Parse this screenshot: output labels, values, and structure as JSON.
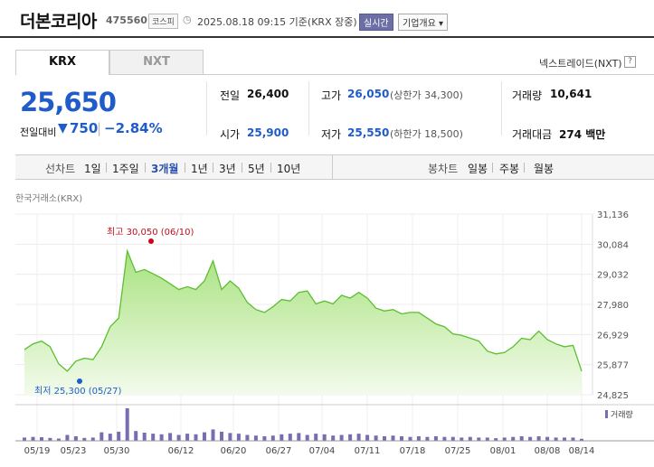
{
  "header": {
    "name": "더본코리아",
    "code": "475560",
    "market": "코스피",
    "timestamp": "2025.08.18 09:15 기준(KRX 장중)",
    "live_button": "실시간",
    "company_button": "기업개요 ▾"
  },
  "tabs": [
    {
      "label": "KRX"
    },
    {
      "label": "NXT"
    }
  ],
  "nxt_link": "넥스트레이드(NXT)",
  "help_icon": "?",
  "price": {
    "current": "25,650",
    "change_label": "전일대비",
    "change_arrow": "▼",
    "change": "750",
    "change_pct": "−2.84%"
  },
  "quote": {
    "prev_label": "전일",
    "prev": "26,400",
    "open_label": "시가",
    "open": "25,900",
    "high_label": "고가",
    "high": "26,050",
    "upper_limit": "(상한가 34,300)",
    "low_label": "저가",
    "low": "25,550",
    "lower_limit": "(하한가 18,500)",
    "volume_label": "거래량",
    "volume": "10,641",
    "amount_label": "거래대금",
    "amount": "274 백만"
  },
  "periods": {
    "line_label": "선차트",
    "line_items": [
      "1일",
      "1주일",
      "3개월",
      "1년",
      "3년",
      "5년",
      "10년"
    ],
    "active": "3개월",
    "candle_label": "봉차트",
    "candle_items": [
      "일봉",
      "주봉",
      "월봉"
    ]
  },
  "source": "한국거래소(KRX)",
  "colors": {
    "price_down": "#1f5cc9",
    "price_up": "#d0021b",
    "line": "#5bbf2e",
    "volume": "#7a6cb0"
  },
  "chart_data": {
    "type": "area",
    "y_ticks": [
      "31,136",
      "30,084",
      "29,032",
      "27,980",
      "26,929",
      "25,877",
      "24,825"
    ],
    "ylim": [
      24825,
      31136
    ],
    "x_ticks": [
      "05/19",
      "05/23",
      "05/30",
      "06/12",
      "06/20",
      "06/27",
      "07/04",
      "07/11",
      "07/18",
      "07/25",
      "08/01",
      "08/08",
      "08/14"
    ],
    "max_label": "최고 30,050 (06/10)",
    "min_label": "최저 25,300 (05/27)",
    "volume_legend": "거래량",
    "values": [
      26400,
      26600,
      26700,
      26500,
      25900,
      25650,
      26000,
      26100,
      26050,
      26500,
      27200,
      27500,
      29850,
      29100,
      29200,
      29050,
      28900,
      28700,
      28500,
      28600,
      28500,
      28800,
      29500,
      28500,
      28800,
      28550,
      28050,
      27800,
      27700,
      27900,
      28150,
      28100,
      28400,
      28450,
      28000,
      28100,
      28000,
      28300,
      28200,
      28400,
      28200,
      27850,
      27750,
      27800,
      27650,
      27700,
      27700,
      27500,
      27300,
      27200,
      26950,
      26900,
      26800,
      26700,
      26350,
      26250,
      26300,
      26500,
      26800,
      26750,
      27050,
      26750,
      26600,
      26500,
      26550,
      25650
    ],
    "volume": [
      10,
      12,
      11,
      9,
      7,
      18,
      14,
      9,
      10,
      26,
      22,
      28,
      100,
      30,
      25,
      22,
      20,
      24,
      18,
      22,
      20,
      26,
      35,
      28,
      24,
      22,
      18,
      16,
      14,
      16,
      20,
      22,
      24,
      18,
      22,
      20,
      16,
      18,
      20,
      22,
      18,
      16,
      14,
      16,
      14,
      12,
      14,
      12,
      14,
      12,
      12,
      10,
      12,
      10,
      10,
      8,
      10,
      12,
      14,
      12,
      14,
      12,
      10,
      10,
      10,
      6
    ]
  }
}
